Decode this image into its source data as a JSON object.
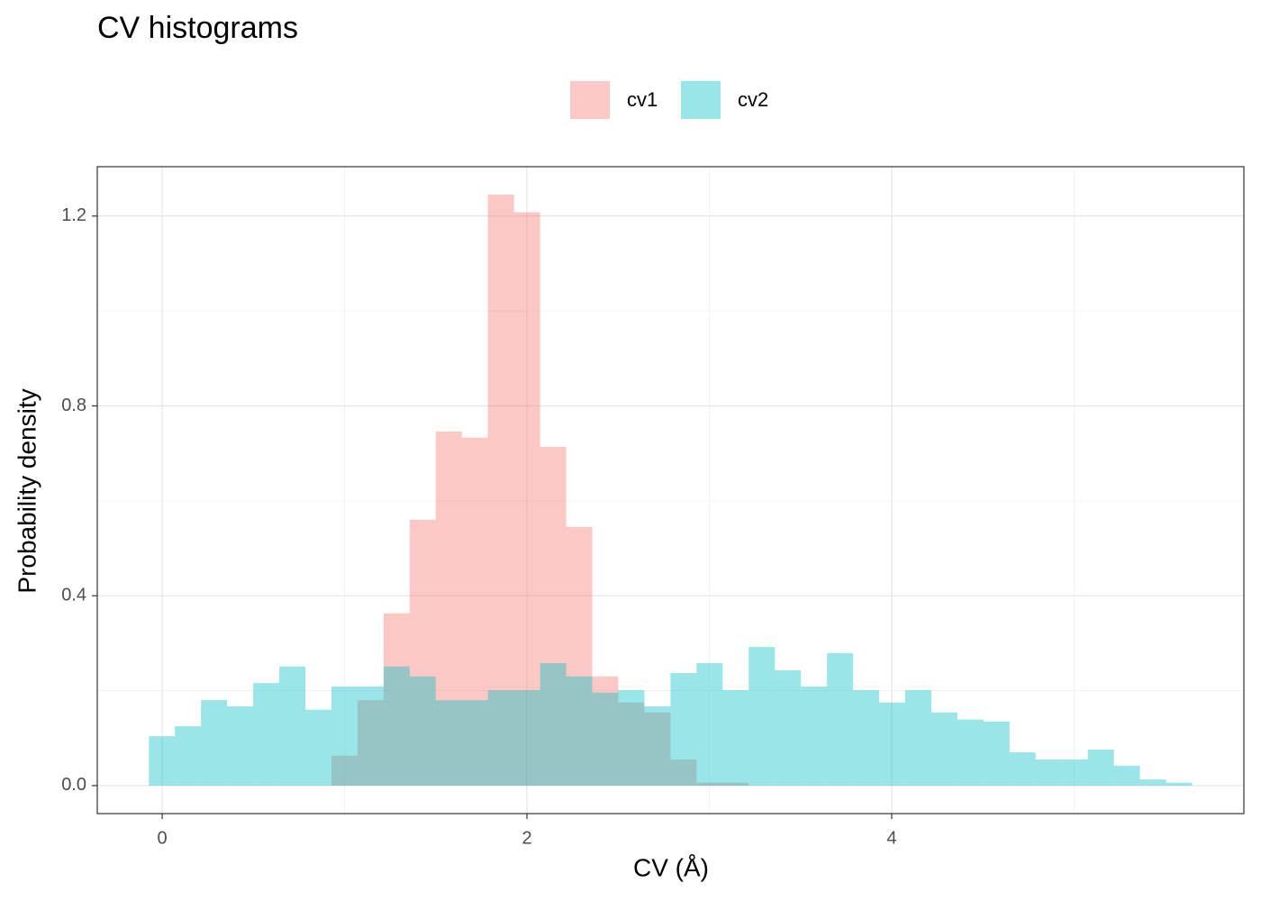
{
  "chart_data": {
    "type": "histogram",
    "title": "CV histograms",
    "x_label": "CV (Å)",
    "y_label": "Probability density",
    "xlim": [
      -0.356,
      5.931
    ],
    "ylim": [
      -0.059,
      1.304
    ],
    "xticks": [
      0,
      2,
      4
    ],
    "xminor": [
      1,
      3,
      5
    ],
    "yticks": [
      {
        "value": 0,
        "label": "0.0"
      },
      0.4,
      0.8,
      1.2
    ],
    "yminor": [
      0.2,
      0.6,
      1.0
    ],
    "grid": true,
    "legend": "top",
    "alpha": 0.4,
    "series": [
      {
        "name": "cv1",
        "color": "#F8766D",
        "bins": [
          0.928,
          1.071,
          1.214,
          1.357,
          1.5,
          1.643,
          1.786,
          1.929,
          2.072,
          2.215,
          2.358,
          2.501,
          2.644,
          2.787,
          2.93,
          3.073,
          3.216
        ],
        "values": [
          0.063,
          0.18,
          0.363,
          0.56,
          0.746,
          0.733,
          1.245,
          1.208,
          0.714,
          0.545,
          0.23,
          0.175,
          0.154,
          0.055,
          0.006,
          0.006
        ]
      },
      {
        "name": "cv2",
        "color": "#00BFC4",
        "bins": [
          -0.073,
          0.07,
          0.213,
          0.356,
          0.499,
          0.642,
          0.785,
          0.928,
          1.071,
          1.214,
          1.357,
          1.5,
          1.643,
          1.786,
          1.929,
          2.072,
          2.215,
          2.358,
          2.501,
          2.644,
          2.787,
          2.93,
          3.073,
          3.216,
          3.359,
          3.502,
          3.645,
          3.788,
          3.931,
          4.074,
          4.217,
          4.36,
          4.503,
          4.646,
          4.789,
          4.932,
          5.075,
          5.218,
          5.361,
          5.504,
          5.647
        ],
        "values": [
          0.104,
          0.125,
          0.18,
          0.167,
          0.216,
          0.251,
          0.16,
          0.209,
          0.209,
          0.251,
          0.23,
          0.18,
          0.18,
          0.201,
          0.201,
          0.258,
          0.23,
          0.196,
          0.201,
          0.167,
          0.237,
          0.258,
          0.201,
          0.292,
          0.243,
          0.209,
          0.279,
          0.201,
          0.175,
          0.201,
          0.154,
          0.139,
          0.135,
          0.07,
          0.055,
          0.055,
          0.076,
          0.042,
          0.013,
          0.006
        ]
      }
    ]
  }
}
